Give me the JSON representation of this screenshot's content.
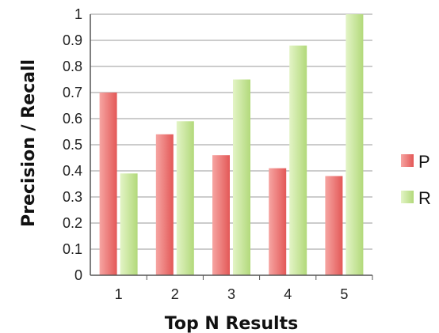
{
  "chart_data": {
    "type": "bar",
    "title": "",
    "xlabel": "Top N Results",
    "ylabel": "Precision / Recall",
    "categories": [
      "1",
      "2",
      "3",
      "4",
      "5"
    ],
    "ylim": [
      0,
      1
    ],
    "yticks": [
      "0",
      "0.1",
      "0.2",
      "0.3",
      "0.4",
      "0.5",
      "0.6",
      "0.7",
      "0.8",
      "0.9",
      "1"
    ],
    "grid": true,
    "legend_position": "right",
    "series": [
      {
        "name": "P",
        "color": "#e9605f",
        "values": [
          0.7,
          0.54,
          0.46,
          0.41,
          0.38
        ]
      },
      {
        "name": "R",
        "color": "#b3d97a",
        "values": [
          0.39,
          0.59,
          0.75,
          0.88,
          1.0
        ]
      }
    ]
  }
}
